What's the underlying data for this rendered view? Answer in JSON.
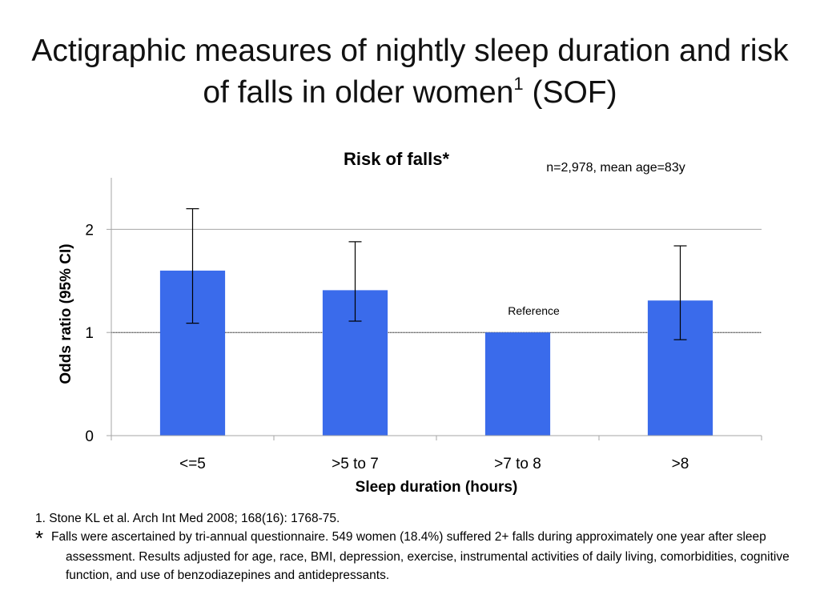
{
  "slide": {
    "title_main": "Actigraphic measures of nightly sleep duration and risk of falls in older women",
    "title_sup": "1",
    "title_suffix": " (SOF)"
  },
  "chart_data": {
    "type": "bar",
    "title": "Risk of falls*",
    "subtitle": "n=2,978, mean age=83y",
    "categories": [
      "<=5",
      ">5 to 7",
      ">7 to 8",
      ">8"
    ],
    "series": [
      {
        "values": [
          1.6,
          1.41,
          1.0,
          1.31
        ],
        "ci_lower": [
          1.09,
          1.11,
          null,
          0.93
        ],
        "ci_upper": [
          2.2,
          1.88,
          null,
          1.84
        ],
        "color": "#3A6BEB"
      }
    ],
    "reference_category": ">7 to 8",
    "reference_label": "Reference",
    "reference_line_y": 1,
    "xlabel": "Sleep duration (hours)",
    "ylabel": "Odds ratio (95% CI)",
    "ylim": [
      0,
      2.5
    ],
    "yticks": [
      0,
      1,
      2
    ],
    "grid": true,
    "legend": "none"
  },
  "footnotes": {
    "ref1": "1. Stone KL et al. Arch Int Med 2008; 168(16): 1768-75.",
    "star_symbol": "*",
    "star_note": "Falls were ascertained by tri-annual questionnaire. 549 women (18.4%) suffered 2+ falls during approximately one year after sleep assessment. Results adjusted for age, race, BMI, depression, exercise, instrumental activities of daily living, comorbidities, cognitive function, and use of benzodiazepines and antidepressants."
  }
}
